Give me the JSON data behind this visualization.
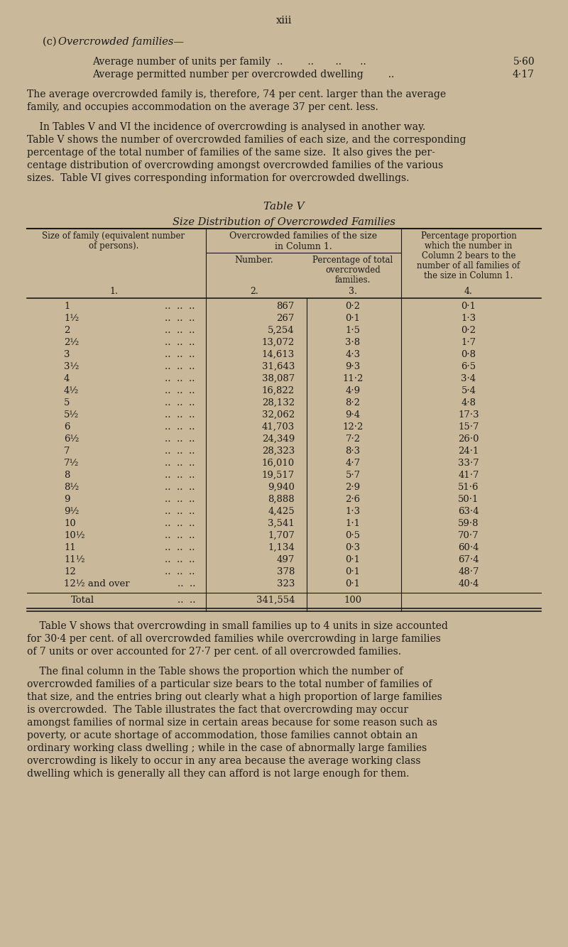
{
  "bg_color": "#c9b99a",
  "text_color": "#1a1a1a",
  "page_title": "xiii",
  "rows": [
    [
      "1",
      "867",
      "0·2",
      "0·1"
    ],
    [
      "1½",
      "267",
      "0·1",
      "1·3"
    ],
    [
      "2",
      "5,254",
      "1·5",
      "0·2"
    ],
    [
      "2½",
      "13,072",
      "3·8",
      "1·7"
    ],
    [
      "3",
      "14,613",
      "4·3",
      "0·8"
    ],
    [
      "3½",
      "31,643",
      "9·3",
      "6·5"
    ],
    [
      "4",
      "38,087",
      "11·2",
      "3·4"
    ],
    [
      "4½",
      "16,822",
      "4·9",
      "5·4"
    ],
    [
      "5",
      "28,132",
      "8·2",
      "4·8"
    ],
    [
      "5½",
      "32,062",
      "9·4",
      "17·3"
    ],
    [
      "6",
      "41,703",
      "12·2",
      "15·7"
    ],
    [
      "6½",
      "24,349",
      "7·2",
      "26·0"
    ],
    [
      "7",
      "28,323",
      "8·3",
      "24·1"
    ],
    [
      "7½",
      "16,010",
      "4·7",
      "33·7"
    ],
    [
      "8",
      "19,517",
      "5·7",
      "41·7"
    ],
    [
      "8½",
      "9,940",
      "2·9",
      "51·6"
    ],
    [
      "9",
      "8,888",
      "2·6",
      "50·1"
    ],
    [
      "9½",
      "4,425",
      "1·3",
      "63·4"
    ],
    [
      "10",
      "3,541",
      "1·1",
      "59·8"
    ],
    [
      "10½",
      "1,707",
      "0·5",
      "70·7"
    ],
    [
      "11",
      "1,134",
      "0·3",
      "60·4"
    ],
    [
      "11½",
      "497",
      "0·1",
      "67·4"
    ],
    [
      "12",
      "378",
      "0·1",
      "48·7"
    ],
    [
      "12½ and over",
      "323",
      "0·1",
      "40·4"
    ]
  ],
  "total_row": [
    "Total",
    "341,554",
    "100",
    ""
  ]
}
